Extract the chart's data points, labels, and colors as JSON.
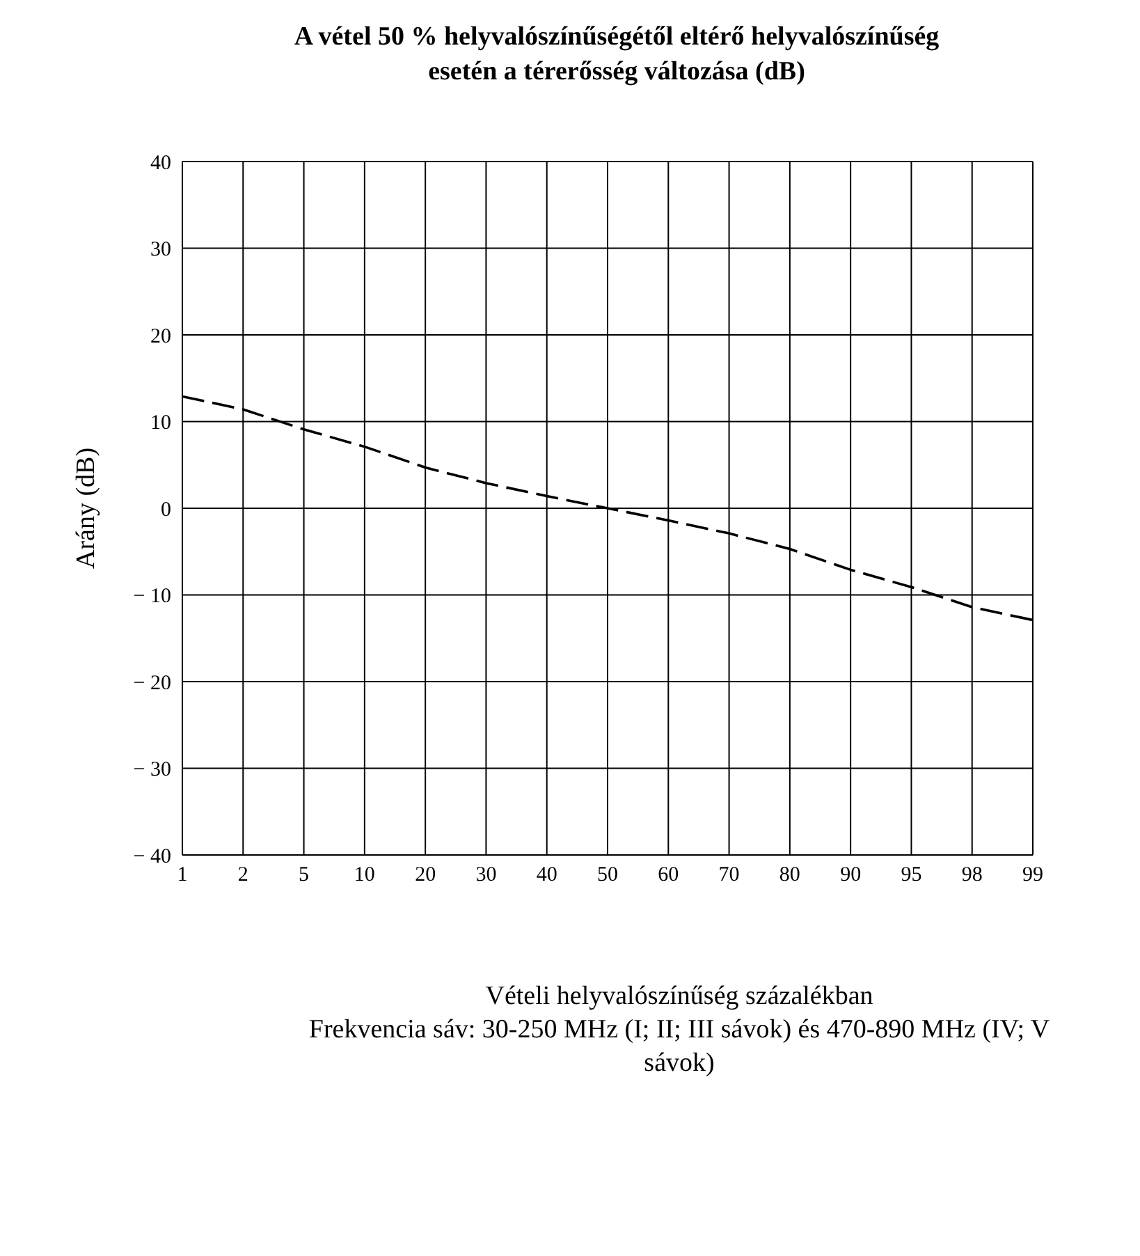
{
  "chart_data": {
    "type": "line",
    "title": "A vétel 50 % helyvalószínűségétől eltérő helyvalószínűség\nesetén a térerősség változása (dB)",
    "xlabel": "Vételi helyvalószínűség százalékban",
    "ylabel": "Arány (dB)",
    "annotations": [
      "Frekvencia sáv: 30-250 MHz (I; II; III sávok) és 470-890 MHz (IV; V sávok)"
    ],
    "categories": [
      "1",
      "2",
      "5",
      "10",
      "20",
      "30",
      "40",
      "50",
      "60",
      "70",
      "80",
      "90",
      "95",
      "98",
      "99"
    ],
    "series": [
      {
        "color": "#000000",
        "values": [
          12.9,
          11.4,
          9.1,
          7.1,
          4.7,
          2.9,
          1.4,
          0,
          -1.4,
          -2.9,
          -4.7,
          -7.1,
          -9.1,
          -11.4,
          -12.9
        ]
      }
    ],
    "ylim": [
      -40,
      40
    ],
    "yticks": [
      {
        "value": -40,
        "label": "− 40"
      },
      {
        "value": -30,
        "label": "− 30"
      },
      {
        "value": -20,
        "label": "− 20"
      },
      {
        "value": -10,
        "label": "− 10"
      },
      0,
      10,
      20,
      30,
      40
    ],
    "grid": true,
    "legend": false,
    "marker": "none",
    "line_style": "dashed"
  }
}
